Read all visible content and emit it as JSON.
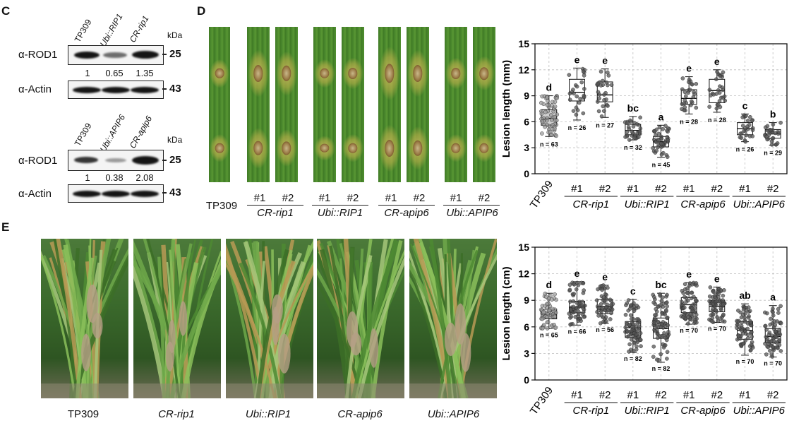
{
  "panels": {
    "C": "C",
    "D": "D",
    "E": "E"
  },
  "blot_top": {
    "lanes": [
      "TP309",
      "Ubi::RIP1",
      "CR-rip1"
    ],
    "kda_label": "kDa",
    "rows": [
      {
        "label": "α-ROD1",
        "mw": "25",
        "intensity": [
          1.0,
          0.55,
          1.0
        ]
      },
      {
        "label": "α-Actin",
        "mw": "43",
        "intensity": [
          1.0,
          1.0,
          1.0
        ]
      }
    ],
    "quant": [
      "1",
      "0.65",
      "1.35"
    ]
  },
  "blot_bottom": {
    "lanes": [
      "TP309",
      "Ubi::APIP6",
      "CR-apip6"
    ],
    "kda_label": "kDa",
    "rows": [
      {
        "label": "α-ROD1",
        "mw": "25",
        "intensity": [
          0.9,
          0.35,
          1.0
        ]
      },
      {
        "label": "α-Actin",
        "mw": "43",
        "intensity": [
          1.0,
          1.0,
          1.0
        ]
      }
    ],
    "quant": [
      "1",
      "0.38",
      "2.08"
    ]
  },
  "leaf_panel": {
    "groups": [
      {
        "name": "TP309",
        "reps": []
      },
      {
        "name": "CR-rip1",
        "reps": [
          "#1",
          "#2"
        ]
      },
      {
        "name": "Ubi::RIP1",
        "reps": [
          "#1",
          "#2"
        ]
      },
      {
        "name": "CR-apip6",
        "reps": [
          "#1",
          "#2"
        ]
      },
      {
        "name": "Ubi::APIP6",
        "reps": [
          "#1",
          "#2"
        ]
      }
    ]
  },
  "photo_panel": {
    "labels": [
      "TP309",
      "CR-rip1",
      "Ubi::RIP1",
      "CR-apip6",
      "Ubi::APIP6"
    ]
  },
  "chart_data": [
    {
      "type": "box",
      "ylabel": "Lesion length (mm)",
      "ylim": [
        0,
        15
      ],
      "yticks": [
        0,
        3,
        6,
        9,
        12,
        15
      ],
      "grid": true,
      "categories": [
        "TP309",
        "#1",
        "#2",
        "#1",
        "#2",
        "#1",
        "#2",
        "#1",
        "#2"
      ],
      "groups": [
        {
          "name": "CR-rip1",
          "span": [
            1,
            2
          ]
        },
        {
          "name": "Ubi::RIP1",
          "span": [
            3,
            4
          ]
        },
        {
          "name": "CR-apip6",
          "span": [
            5,
            6
          ]
        },
        {
          "name": "Ubi::APIP6",
          "span": [
            7,
            8
          ]
        }
      ],
      "series": [
        {
          "median": 6.4,
          "q1": 5.6,
          "q3": 7.4,
          "min": 4.3,
          "max": 9.0,
          "letter": "d",
          "n": "n = 63",
          "count": 63
        },
        {
          "median": 9.4,
          "q1": 8.4,
          "q3": 10.9,
          "min": 6.2,
          "max": 12.2,
          "letter": "e",
          "n": "n = 26",
          "count": 26
        },
        {
          "median": 9.1,
          "q1": 8.3,
          "q3": 10.6,
          "min": 6.5,
          "max": 12.1,
          "letter": "e",
          "n": "n = 27",
          "count": 27
        },
        {
          "median": 5.0,
          "q1": 4.5,
          "q3": 5.7,
          "min": 3.9,
          "max": 6.6,
          "letter": "bc",
          "n": "n = 32",
          "count": 32
        },
        {
          "median": 3.7,
          "q1": 3.1,
          "q3": 4.3,
          "min": 1.9,
          "max": 5.6,
          "letter": "a",
          "n": "n = 45",
          "count": 45
        },
        {
          "median": 8.7,
          "q1": 8.0,
          "q3": 9.7,
          "min": 6.9,
          "max": 11.2,
          "letter": "e",
          "n": "n = 28",
          "count": 28
        },
        {
          "median": 9.6,
          "q1": 8.2,
          "q3": 10.9,
          "min": 7.1,
          "max": 12.0,
          "letter": "e",
          "n": "n = 28",
          "count": 28
        },
        {
          "median": 5.2,
          "q1": 4.5,
          "q3": 5.9,
          "min": 3.7,
          "max": 6.9,
          "letter": "c",
          "n": "n = 26",
          "count": 26
        },
        {
          "median": 4.6,
          "q1": 4.1,
          "q3": 5.1,
          "min": 3.3,
          "max": 5.9,
          "letter": "b",
          "n": "n = 29",
          "count": 29
        }
      ]
    },
    {
      "type": "box",
      "ylabel": "Lesion length (cm)",
      "ylim": [
        0,
        15
      ],
      "yticks": [
        0,
        3,
        6,
        9,
        12,
        15
      ],
      "grid": true,
      "categories": [
        "TP309",
        "#1",
        "#2",
        "#1",
        "#2",
        "#1",
        "#2",
        "#1",
        "#2"
      ],
      "groups": [
        {
          "name": "CR-rip1",
          "span": [
            1,
            2
          ]
        },
        {
          "name": "Ubi::RIP1",
          "span": [
            3,
            4
          ]
        },
        {
          "name": "CR-apip6",
          "span": [
            5,
            6
          ]
        },
        {
          "name": "Ubi::APIP6",
          "span": [
            7,
            8
          ]
        }
      ],
      "series": [
        {
          "median": 7.4,
          "q1": 6.9,
          "q3": 8.0,
          "min": 5.8,
          "max": 9.8,
          "letter": "d",
          "n": "n = 65",
          "count": 65
        },
        {
          "median": 8.2,
          "q1": 7.6,
          "q3": 8.9,
          "min": 6.2,
          "max": 11.1,
          "letter": "e",
          "n": "n = 66",
          "count": 66
        },
        {
          "median": 8.3,
          "q1": 7.5,
          "q3": 9.1,
          "min": 6.4,
          "max": 10.7,
          "letter": "e",
          "n": "n = 56",
          "count": 56
        },
        {
          "median": 5.9,
          "q1": 4.8,
          "q3": 6.6,
          "min": 3.1,
          "max": 9.1,
          "letter": "c",
          "n": "n = 82",
          "count": 82
        },
        {
          "median": 5.8,
          "q1": 4.7,
          "q3": 7.0,
          "min": 2.0,
          "max": 9.8,
          "letter": "bc",
          "n": "n = 82",
          "count": 82
        },
        {
          "median": 8.5,
          "q1": 7.6,
          "q3": 9.3,
          "min": 6.3,
          "max": 11.0,
          "letter": "e",
          "n": "n = 70",
          "count": 70
        },
        {
          "median": 8.3,
          "q1": 7.7,
          "q3": 9.0,
          "min": 6.5,
          "max": 10.5,
          "letter": "e",
          "n": "n = 70",
          "count": 70
        },
        {
          "median": 5.6,
          "q1": 4.6,
          "q3": 6.6,
          "min": 2.8,
          "max": 8.6,
          "letter": "ab",
          "n": "n = 70",
          "count": 70
        },
        {
          "median": 4.9,
          "q1": 4.2,
          "q3": 5.8,
          "min": 2.6,
          "max": 8.4,
          "letter": "a",
          "n": "n = 70",
          "count": 70
        }
      ]
    }
  ]
}
